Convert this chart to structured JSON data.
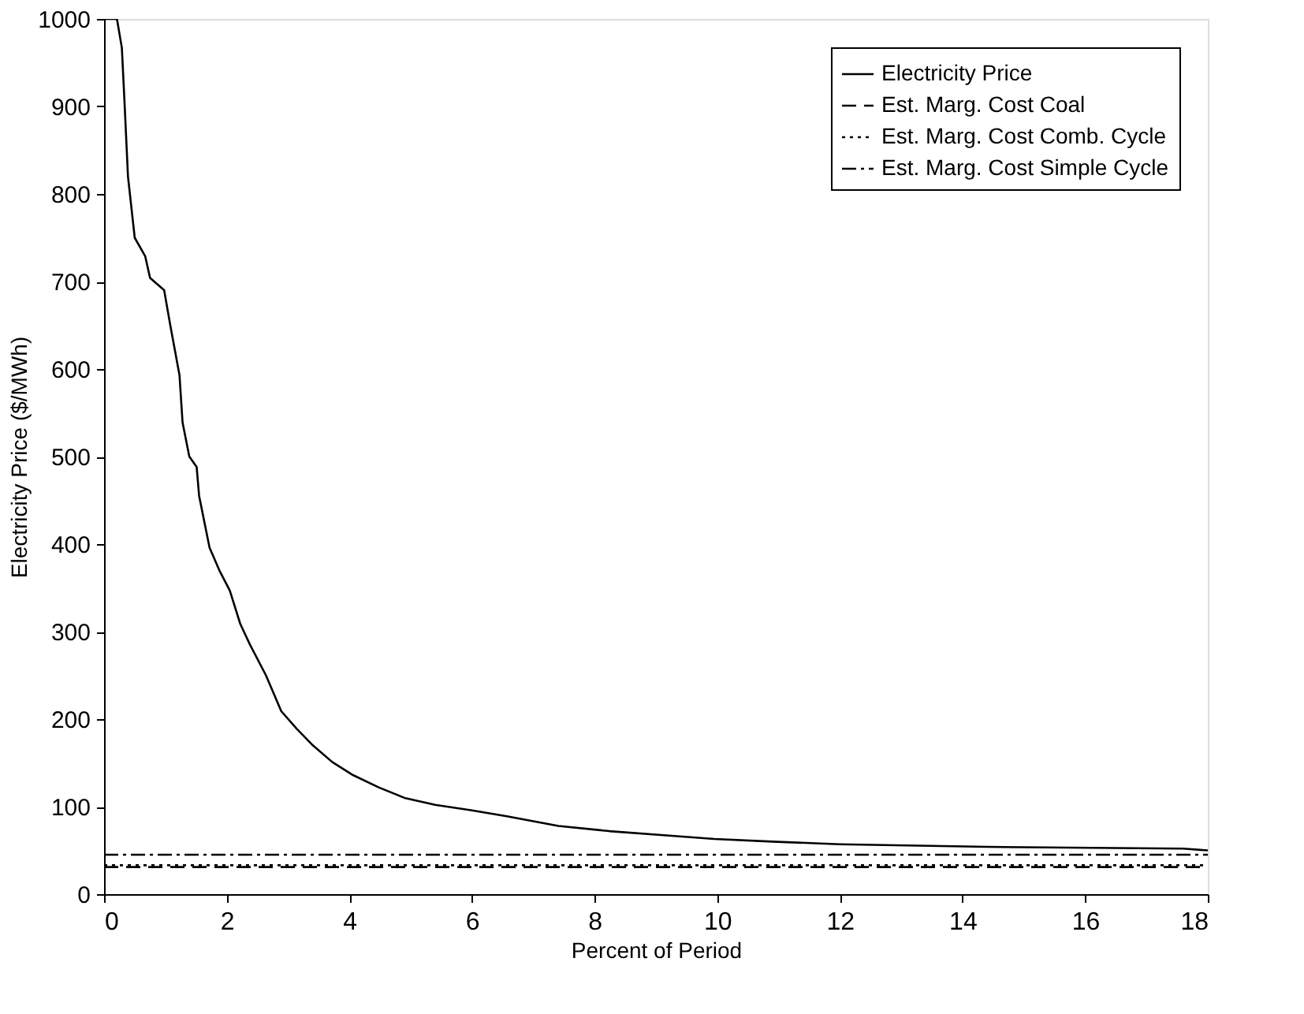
{
  "chart_data": {
    "type": "line",
    "xlabel": "Percent of Period",
    "ylabel": "Electricity Price ($/MWh)",
    "xlim": [
      0,
      18
    ],
    "xticks": [
      0,
      2,
      4,
      6,
      8,
      10,
      12,
      14,
      16,
      18
    ],
    "ylim": [
      0,
      1000
    ],
    "yticks": [
      0,
      100,
      200,
      300,
      400,
      500,
      600,
      700,
      800,
      900,
      1000
    ],
    "grid": false,
    "legend": "top right",
    "marker": "none",
    "series": [
      {
        "name": "Electricity Price",
        "color": "#000000",
        "line_style": "solid",
        "x": [
          0,
          0.21,
          0.29,
          0.33,
          0.39,
          0.5,
          0.67,
          0.75,
          0.98,
          1.08,
          1.23,
          1.28,
          1.39,
          1.51,
          1.55,
          1.72,
          1.88,
          2.05,
          2.22,
          2.38,
          2.64,
          2.89,
          3.14,
          3.39,
          3.72,
          4.06,
          4.48,
          4.9,
          5.4,
          5.98,
          6.57,
          7.41,
          8.24,
          9.0,
          9.95,
          10.9,
          12.0,
          14.4,
          17.6,
          18.0
        ],
        "values": [
          1000,
          1000,
          967,
          910,
          820,
          750,
          729,
          704,
          690,
          650,
          593,
          539,
          500,
          488,
          455,
          396,
          370,
          347,
          309,
          285,
          250,
          209,
          189,
          171,
          151,
          136,
          122,
          110,
          102,
          96,
          89,
          78,
          72,
          68,
          63,
          60,
          57,
          54,
          52,
          50
        ]
      },
      {
        "name": "Est. Marg. Cost Coal",
        "color": "#000000",
        "line_style": "dashed",
        "x": [
          0,
          18
        ],
        "values": [
          31,
          31
        ]
      },
      {
        "name": "Est. Marg. Cost Comb. Cycle",
        "color": "#000000",
        "line_style": "dotted",
        "x": [
          0,
          18
        ],
        "values": [
          33,
          33
        ]
      },
      {
        "name": "Est. Marg. Cost Simple Cycle",
        "color": "#000000",
        "line_style": "dashdot",
        "x": [
          0,
          18
        ],
        "values": [
          45,
          45
        ]
      }
    ]
  }
}
